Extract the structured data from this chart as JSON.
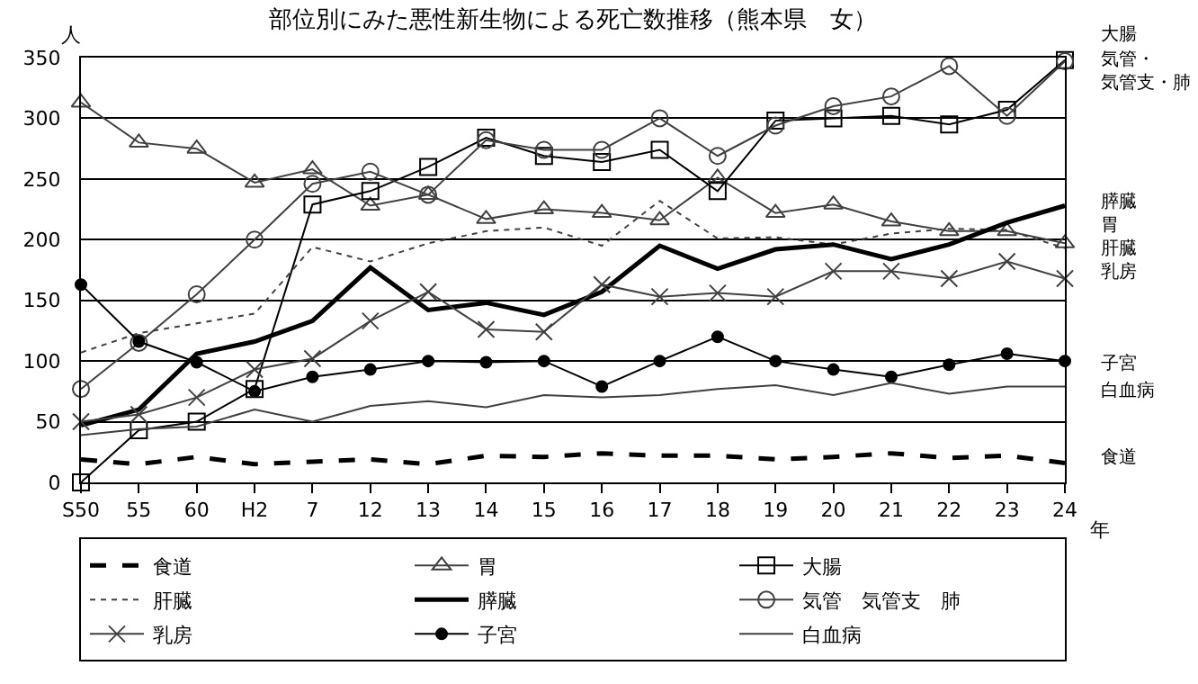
{
  "chart_data": {
    "type": "line",
    "title": "部位別にみた悪性新生物による死亡数推移（熊本県　女）",
    "xlabel": "年",
    "ylabel": "人",
    "categories": [
      "S50",
      "55",
      "60",
      "H2",
      "7",
      "12",
      "13",
      "14",
      "15",
      "16",
      "17",
      "18",
      "19",
      "20",
      "21",
      "22",
      "23",
      "24"
    ],
    "ylim": [
      0,
      350
    ],
    "yticks": [
      0,
      50,
      100,
      150,
      200,
      250,
      300,
      350
    ],
    "grid": "y",
    "legend": "bottom",
    "series": [
      {
        "name": "食道",
        "color": "#000000",
        "line_style": "dashed",
        "marker": "none",
        "values": [
          19,
          15,
          21,
          15,
          17,
          19,
          15,
          22,
          21,
          24,
          22,
          22,
          19,
          21,
          24,
          20,
          22,
          16
        ]
      },
      {
        "name": "胃",
        "color": "#404040",
        "line_style": "solid",
        "marker": "triangle",
        "values": [
          313,
          280,
          275,
          247,
          258,
          228,
          237,
          217,
          225,
          222,
          216,
          251,
          222,
          229,
          215,
          207,
          207,
          197
        ]
      },
      {
        "name": "大腸",
        "color": "#000000",
        "line_style": "solid",
        "marker": "square",
        "values": [
          0,
          43,
          50,
          77,
          229,
          240,
          260,
          284,
          269,
          264,
          274,
          240,
          298,
          300,
          302,
          295,
          307,
          348
        ]
      },
      {
        "name": "肝臓",
        "color": "#404040",
        "line_style": "dotted",
        "marker": "none",
        "values": [
          107,
          123,
          131,
          139,
          194,
          182,
          197,
          207,
          210,
          195,
          232,
          201,
          202,
          196,
          205,
          209,
          208,
          193
        ]
      },
      {
        "name": "膵臓",
        "color": "#000000",
        "line_style": "solid",
        "marker": "none",
        "values": [
          47,
          60,
          106,
          116,
          133,
          177,
          142,
          148,
          138,
          157,
          195,
          176,
          192,
          196,
          184,
          196,
          214,
          228
        ]
      },
      {
        "name": "気管　気管支　肺",
        "color": "#404040",
        "line_style": "solid",
        "marker": "circle",
        "values": [
          77,
          115,
          155,
          200,
          246,
          256,
          237,
          282,
          274,
          274,
          300,
          269,
          294,
          310,
          318,
          343,
          302,
          347
        ]
      },
      {
        "name": "乳房",
        "color": "#404040",
        "line_style": "solid",
        "marker": "cross",
        "values": [
          50,
          56,
          70,
          93,
          102,
          133,
          157,
          126,
          124,
          163,
          153,
          156,
          153,
          174,
          174,
          168,
          182,
          168
        ]
      },
      {
        "name": "子宮",
        "color": "#000000",
        "line_style": "solid",
        "marker": "circle-filled",
        "values": [
          163,
          116,
          99,
          75,
          87,
          93,
          100,
          99,
          100,
          79,
          100,
          120,
          100,
          93,
          87,
          97,
          106,
          100
        ]
      },
      {
        "name": "白血病",
        "color": "#404040",
        "line_style": "solid",
        "marker": "none",
        "values": [
          39,
          44,
          46,
          60,
          50,
          63,
          67,
          62,
          72,
          70,
          72,
          77,
          80,
          72,
          82,
          73,
          79,
          79
        ]
      }
    ],
    "annotations": [
      "大腸",
      "気管・気管支・肺",
      "膵臓",
      "胃",
      "肝臓",
      "乳房",
      "子宮",
      "白血病",
      "食道"
    ]
  }
}
